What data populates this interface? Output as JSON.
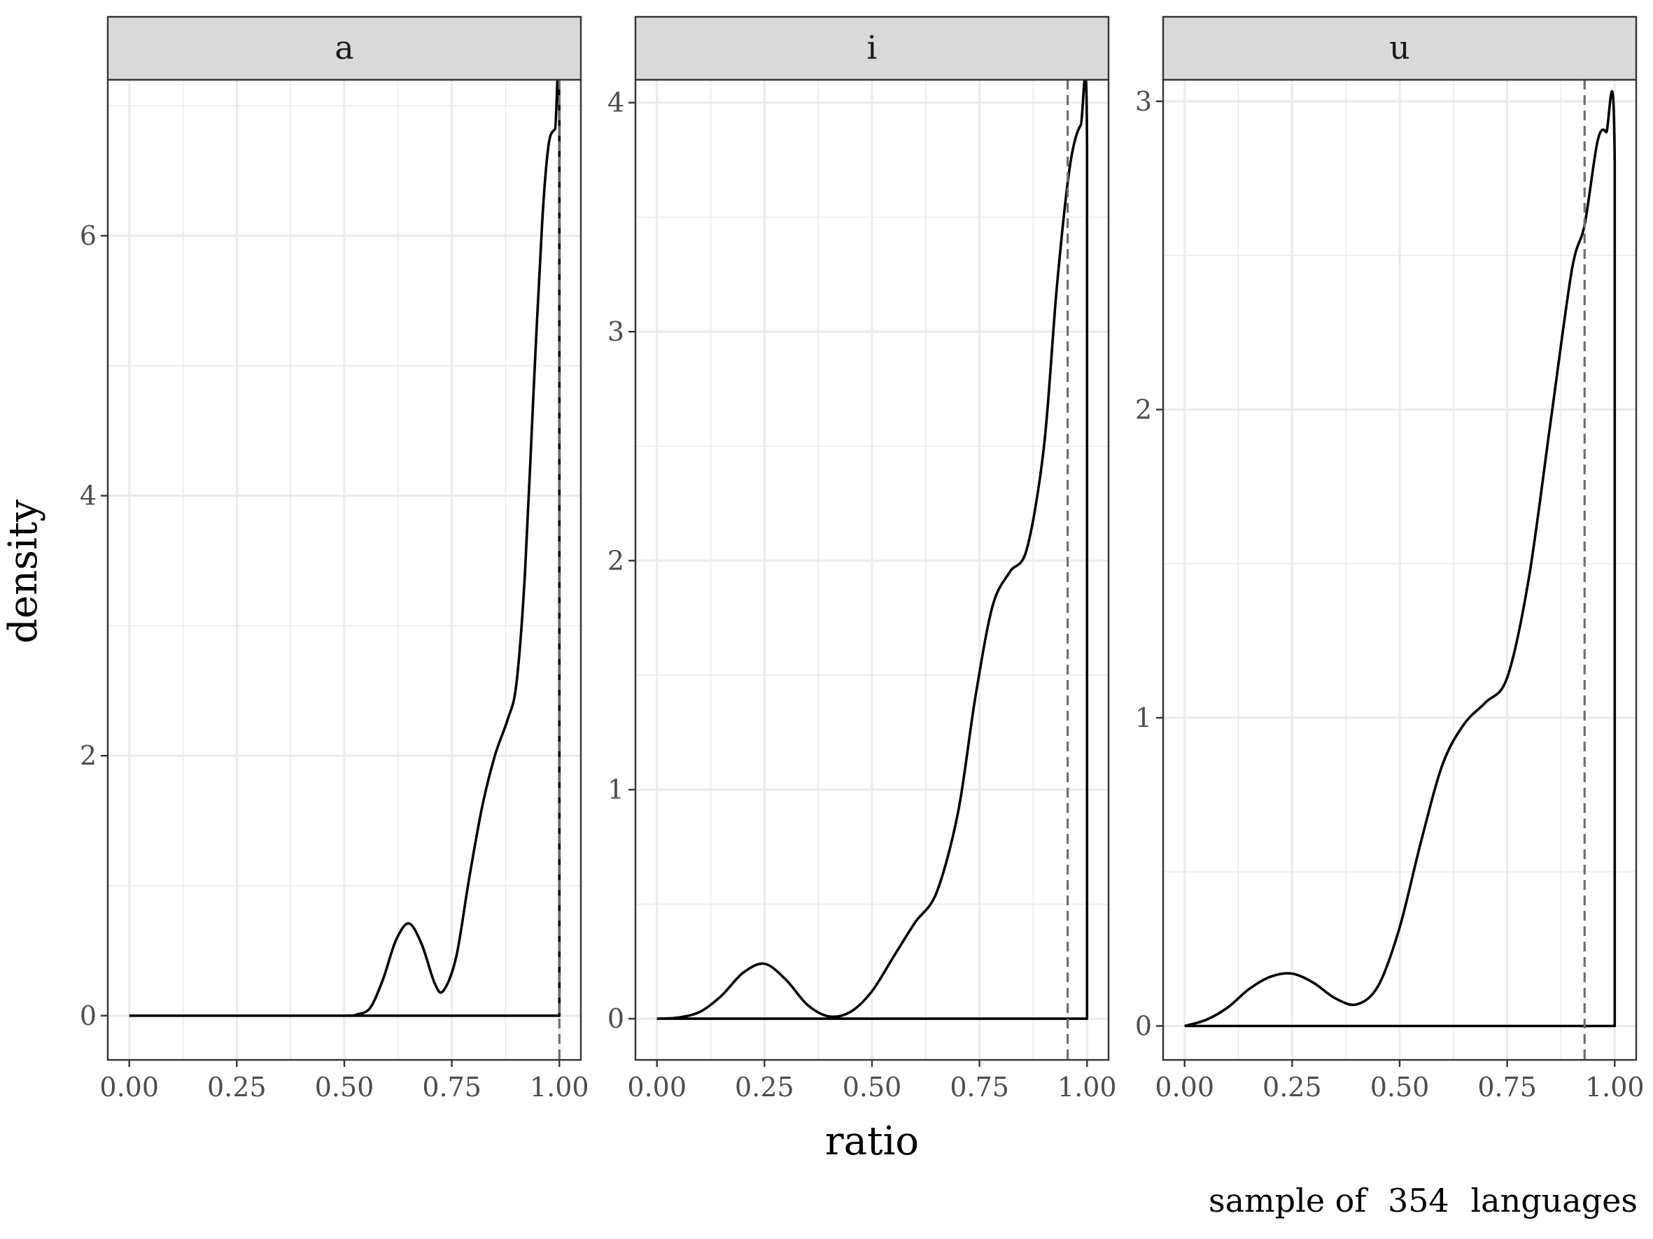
{
  "chart_data": {
    "type": "line",
    "subtype": "faceted density",
    "xlabel": "ratio",
    "ylabel": "density",
    "caption": {
      "prefix": "sample of",
      "count": "354",
      "suffix": "languages"
    },
    "grid": true,
    "xlim": [
      -0.05,
      1.05
    ],
    "x_ticks": [
      0,
      0.25,
      0.5,
      0.75,
      1.0
    ],
    "x_tick_labels": [
      "0.00",
      "0.25",
      "0.50",
      "0.75",
      "1.00"
    ],
    "panels": [
      {
        "label": "a",
        "ylim": [
          -0.34,
          7.2
        ],
        "y_ticks": [
          0,
          2,
          4,
          6
        ],
        "y_tick_labels": [
          "0",
          "2",
          "4",
          "6"
        ],
        "vline": 1.0,
        "x": [
          0.0,
          0.25,
          0.5,
          0.53,
          0.56,
          0.59,
          0.62,
          0.65,
          0.68,
          0.71,
          0.73,
          0.76,
          0.79,
          0.82,
          0.85,
          0.88,
          0.9,
          0.92,
          0.94,
          0.96,
          0.975,
          0.99,
          1.0,
          1.0
        ],
        "y": [
          0.0,
          0.0,
          0.0,
          0.01,
          0.06,
          0.28,
          0.58,
          0.71,
          0.55,
          0.25,
          0.19,
          0.45,
          1.05,
          1.6,
          2.0,
          2.28,
          2.55,
          3.4,
          4.8,
          6.1,
          6.7,
          6.82,
          6.82,
          0.0
        ]
      },
      {
        "label": "i",
        "ylim": [
          -0.18,
          4.1
        ],
        "y_ticks": [
          0,
          1,
          2,
          3,
          4
        ],
        "y_tick_labels": [
          "0",
          "1",
          "2",
          "3",
          "4"
        ],
        "vline": 0.955,
        "x": [
          0.0,
          0.05,
          0.1,
          0.15,
          0.2,
          0.25,
          0.3,
          0.35,
          0.4,
          0.45,
          0.5,
          0.55,
          0.6,
          0.65,
          0.7,
          0.74,
          0.78,
          0.82,
          0.86,
          0.9,
          0.93,
          0.96,
          0.985,
          1.0,
          1.0
        ],
        "y": [
          0.0,
          0.005,
          0.03,
          0.1,
          0.2,
          0.24,
          0.17,
          0.06,
          0.01,
          0.03,
          0.12,
          0.27,
          0.42,
          0.55,
          0.9,
          1.4,
          1.8,
          1.95,
          2.05,
          2.5,
          3.2,
          3.72,
          3.9,
          3.82,
          0.0
        ]
      },
      {
        "label": "u",
        "ylim": [
          -0.11,
          3.07
        ],
        "y_ticks": [
          0,
          1,
          2,
          3
        ],
        "y_tick_labels": [
          "0",
          "1",
          "2",
          "3"
        ],
        "vline": 0.93,
        "x": [
          0.0,
          0.05,
          0.1,
          0.15,
          0.2,
          0.25,
          0.3,
          0.35,
          0.4,
          0.45,
          0.5,
          0.55,
          0.6,
          0.65,
          0.7,
          0.75,
          0.8,
          0.85,
          0.9,
          0.93,
          0.96,
          0.98,
          1.0,
          1.0
        ],
        "y": [
          0.0,
          0.02,
          0.06,
          0.12,
          0.16,
          0.17,
          0.14,
          0.09,
          0.07,
          0.13,
          0.32,
          0.6,
          0.85,
          0.98,
          1.05,
          1.13,
          1.45,
          1.95,
          2.45,
          2.6,
          2.87,
          2.9,
          2.8,
          0.0
        ]
      }
    ]
  }
}
